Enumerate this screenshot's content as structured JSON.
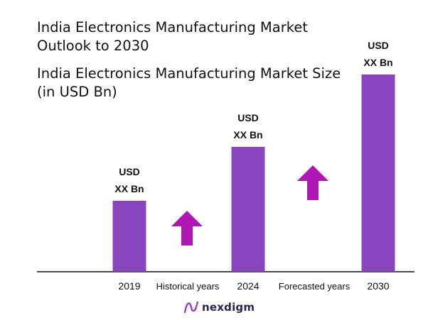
{
  "header": {
    "title": "India Electronics Manufacturing Market\nOutlook to 2030",
    "subtitle": "India Electronics Manufacturing Market Size\n(in USD Bn)"
  },
  "chart_data": {
    "type": "bar",
    "title": "India Electronics Manufacturing Market Size (in USD Bn)",
    "categories": [
      "2019",
      "2024",
      "2030"
    ],
    "values": [
      100,
      176,
      278
    ],
    "value_note": "relative bar heights; actual values not disclosed",
    "data_labels": [
      {
        "line1": "USD",
        "line2": "XX Bn"
      },
      {
        "line1": "USD",
        "line2": "XX Bn"
      },
      {
        "line1": "USD",
        "line2": "XX Bn"
      }
    ],
    "ylim": [
      0,
      278
    ],
    "grid": false,
    "bar_color": "#8a44be",
    "arrow_color": "#b015b6",
    "period_labels": [
      "Historical years",
      "Forecasted years"
    ]
  },
  "brand": {
    "name": "nexdigm",
    "logo_icon": "nexdigm-logo-icon",
    "logo_color": "#2a2450",
    "accent_color": "#9a3fcc"
  }
}
